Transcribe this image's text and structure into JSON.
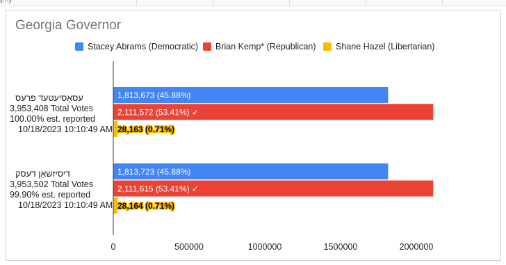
{
  "top_strip_text": "(...)",
  "chart_data": {
    "type": "bar",
    "orientation": "horizontal",
    "title": "Georgia Governor",
    "legend_position": "top",
    "categories": [
      {
        "source": "עסאָסיעטעד פּרעס",
        "total_votes": "3,953,408 Total Votes",
        "reported": "100.00% est. reported",
        "timestamp": "10/18/2023 10:10:49 AM"
      },
      {
        "source": "דיסיזשאַן דעסק",
        "total_votes": "3,953,502 Total Votes",
        "reported": "99.90% est. reported",
        "timestamp": "10/18/2023 10:10:49 AM"
      }
    ],
    "series": [
      {
        "name": "Stacey Abrams (Democratic)",
        "color": "#4285f4",
        "values": [
          1813673,
          1813723
        ],
        "labels": [
          "1,813,673 (45.88%)",
          "1,813,723 (45.88%)"
        ],
        "label_color": "#ffffff"
      },
      {
        "name": "Brian Kemp* (Republican)",
        "color": "#ea4335",
        "values": [
          2111572,
          2111615
        ],
        "labels": [
          "2,111,572 (53.41%) ✓",
          "2,111,615 (53.41%) ✓"
        ],
        "label_color": "#ffffff"
      },
      {
        "name": "Shane Hazel (Libertarian)",
        "color": "#fbbc04",
        "values": [
          28163,
          28164
        ],
        "labels": [
          "28,163 (0.71%)",
          "28,164 (0.71%)"
        ],
        "label_color": "#000000"
      }
    ],
    "x_ticks": [
      "0",
      "500000",
      "1000000",
      "1500000",
      "2000000"
    ],
    "xlim": [
      0,
      2500000
    ],
    "grid": false
  }
}
